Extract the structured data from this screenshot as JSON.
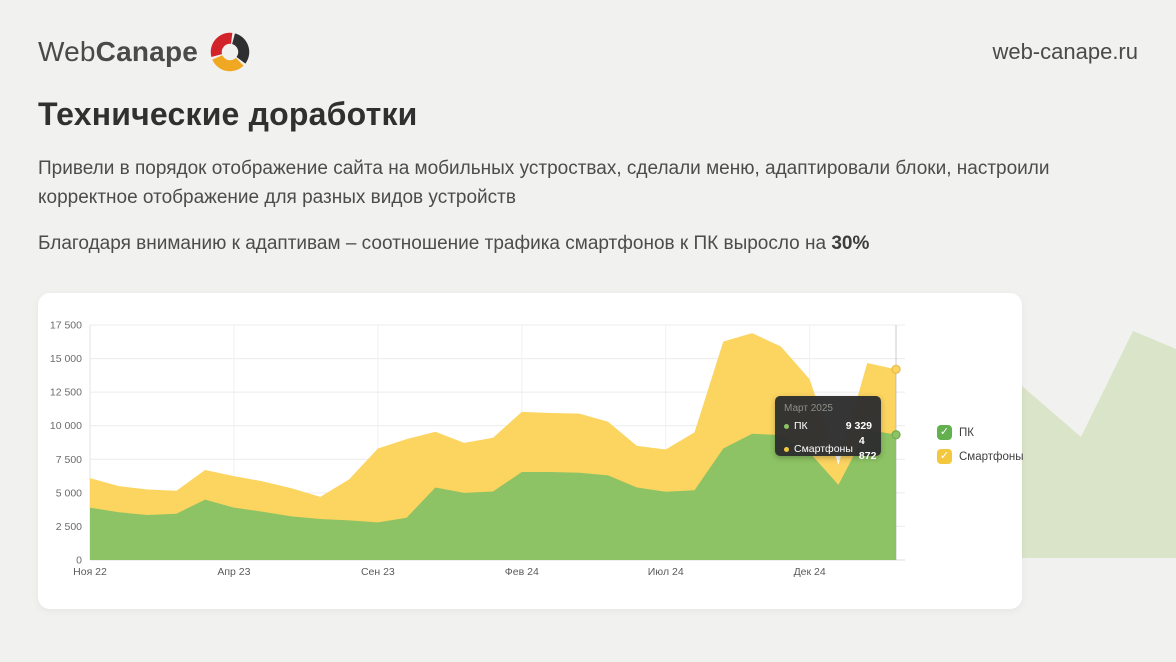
{
  "header": {
    "logo_text_web": "Web",
    "logo_text_canape": "Canape",
    "site_url": "web-canape.ru"
  },
  "content": {
    "title": "Технические доработки",
    "paragraph1": "Привели в порядок отображение сайта на мобильных устроствах, сделали меню, адаптировали блоки, настроили корректное отображение для разных видов устройств",
    "paragraph2_prefix": "Благодаря вниманию к адаптивам – соотношение трафика смартфонов к ПК выросло на ",
    "paragraph2_highlight": "30%"
  },
  "icons": {
    "check": "✓"
  },
  "colors": {
    "page_bg": "#f1f1ef",
    "card_bg": "#ffffff",
    "decoration": "#dae4c8",
    "area_pc": "#8dc364",
    "area_smartphones": "#fcd460",
    "legend_pc": "#62b14e",
    "legend_smartphones": "#f4c83e",
    "tooltip_bg": "#2e2e2e",
    "grid": "#ececec"
  },
  "chart_data": {
    "type": "area",
    "stacked": true,
    "title": "",
    "ylim": [
      0,
      17500
    ],
    "grid": true,
    "y_ticks": [
      "0",
      "2 500",
      "5 000",
      "7 500",
      "10 000",
      "12 500",
      "15 000",
      "17 500"
    ],
    "x_tick_labels": [
      "Ноя 22",
      "Апр 23",
      "Сен 23",
      "Фев 24",
      "Июл 24",
      "Дек 24"
    ],
    "x_tick_indices": [
      0,
      5,
      10,
      15,
      20,
      25
    ],
    "categories": [
      "Ноя 22",
      "Дек 22",
      "Янв 23",
      "Фев 23",
      "Мар 23",
      "Апр 23",
      "Май 23",
      "Июн 23",
      "Июл 23",
      "Авг 23",
      "Сен 23",
      "Окт 23",
      "Ноя 23",
      "Дек 23",
      "Янв 24",
      "Фев 24",
      "Мар 24",
      "Апр 24",
      "Май 24",
      "Июн 24",
      "Июл 24",
      "Авг 24",
      "Сен 24",
      "Окт 24",
      "Ноя 24",
      "Дек 24",
      "Янв 25",
      "Фев 25",
      "Мар 25"
    ],
    "series": [
      {
        "name": "ПК",
        "color": "#8dc364",
        "values": [
          3900,
          3550,
          3350,
          3450,
          4500,
          3900,
          3600,
          3250,
          3050,
          2950,
          2800,
          3150,
          5400,
          5000,
          5100,
          6550,
          6550,
          6500,
          6300,
          5400,
          5080,
          5200,
          8300,
          9400,
          9300,
          8000,
          5590,
          9700,
          9329
        ]
      },
      {
        "name": "Смартфоны",
        "color": "#fcd460",
        "values": [
          2200,
          1950,
          1900,
          1700,
          2200,
          2350,
          2250,
          2100,
          1650,
          3050,
          5500,
          5850,
          4150,
          3720,
          4000,
          4480,
          4400,
          4400,
          4000,
          3100,
          3150,
          4300,
          7970,
          7500,
          6600,
          5450,
          1510,
          4970,
          4872
        ]
      }
    ],
    "legend": {
      "position": "right",
      "items": [
        {
          "label": "ПК",
          "color": "#62b14e"
        },
        {
          "label": "Смартфоны",
          "color": "#f4c83e"
        }
      ]
    },
    "tooltip": {
      "title": "Март 2025",
      "rows": [
        {
          "label": "ПК",
          "value": "9 329",
          "color": "#8dc364"
        },
        {
          "label": "Смартфоны",
          "value": "4 872",
          "color": "#f4c83e"
        }
      ]
    }
  }
}
